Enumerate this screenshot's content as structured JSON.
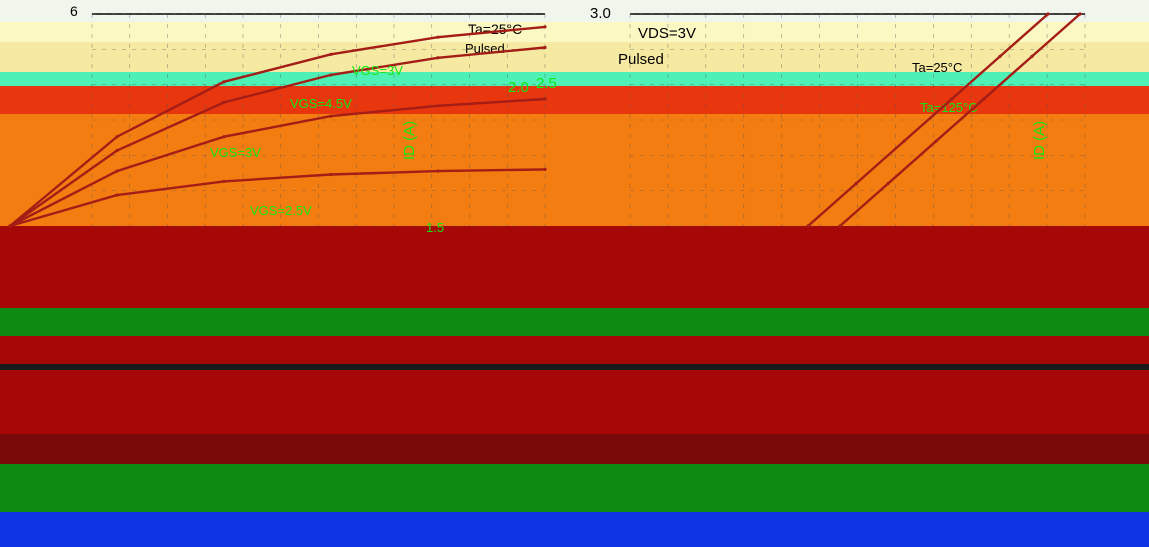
{
  "colors": {
    "band_top": "#f1f6ec",
    "band_cream": "#fbf8c4",
    "band_yellow": "#f6eaa2",
    "band_aqua": "#4ef0b6",
    "band_red": "#e8360e",
    "band_orange": "#f47d11",
    "band_maroon": "#a60808",
    "band_green": "#0e8a13",
    "band_blue": "#0e34e6",
    "curve": "#a41d16",
    "label_green": "#10e812"
  },
  "charts": [
    {
      "type": "line",
      "top_tick_label": "6",
      "annotations": {
        "ta": "Ta=25°C",
        "pulsed": "Pulsed"
      },
      "curve_labels": [
        "VGS=3V",
        "VGS=4.5V",
        "VGS=3V",
        "VGS=2.5V"
      ]
    },
    {
      "type": "line",
      "top_tick_label": "3.0",
      "annotations": {
        "vds": "VDS=3V",
        "pulsed": "Pulsed",
        "ta_low": "Ta=25°C",
        "ta_high": "Ta=125°C"
      },
      "tick_labels": [
        "2.5",
        "2.0",
        "1.5"
      ],
      "ylabel": "ID (A)"
    }
  ],
  "chart_data": [
    {
      "type": "line",
      "title": "",
      "xlabel": "",
      "ylabel": "",
      "series": [
        {
          "name": "VGS=3V",
          "x": [
            0,
            1,
            2,
            3,
            4,
            5
          ],
          "y": [
            0,
            2.6,
            4.2,
            5.0,
            5.5,
            5.8
          ]
        },
        {
          "name": "VGS=4.5V",
          "x": [
            0,
            1,
            2,
            3,
            4,
            5
          ],
          "y": [
            0,
            2.2,
            3.6,
            4.4,
            4.9,
            5.2
          ]
        },
        {
          "name": "VGS=3V",
          "x": [
            0,
            1,
            2,
            3,
            4,
            5
          ],
          "y": [
            0,
            1.6,
            2.6,
            3.2,
            3.5,
            3.7
          ]
        },
        {
          "name": "VGS=2.5V",
          "x": [
            0,
            1,
            2,
            3,
            4,
            5
          ],
          "y": [
            0,
            0.9,
            1.3,
            1.5,
            1.6,
            1.65
          ]
        }
      ],
      "xlim": [
        0,
        5
      ],
      "ylim": [
        0,
        6
      ]
    },
    {
      "type": "line",
      "title": "",
      "xlabel": "",
      "ylabel": "ID (A)",
      "series": [
        {
          "name": "Ta=25°C",
          "x": [
            1.5,
            1.8,
            2.1,
            2.4,
            2.7,
            3.0
          ],
          "y": [
            0.0,
            0.6,
            1.2,
            1.8,
            2.4,
            3.0
          ]
        },
        {
          "name": "Ta=125°C",
          "x": [
            1.3,
            1.6,
            1.9,
            2.2,
            2.5,
            2.8
          ],
          "y": [
            0.0,
            0.6,
            1.2,
            1.8,
            2.4,
            3.0
          ]
        }
      ],
      "xlim": [
        1.0,
        3.0
      ],
      "ylim": [
        0,
        3.0
      ]
    }
  ]
}
